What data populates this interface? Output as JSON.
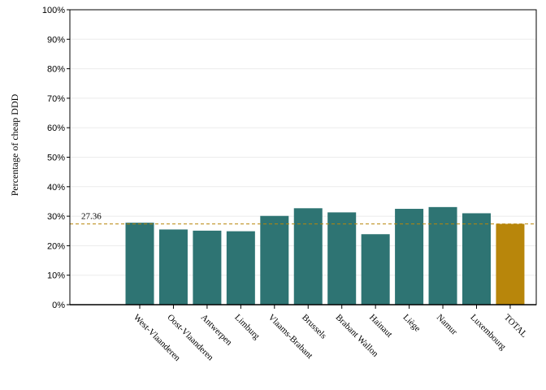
{
  "chart_data": {
    "type": "bar",
    "ylabel": "Percentage of cheap DDD",
    "xlabel": "",
    "ylim": [
      0,
      100
    ],
    "yticks": [
      0,
      10,
      20,
      30,
      40,
      50,
      60,
      70,
      80,
      90,
      100
    ],
    "ytick_labels": [
      "0%",
      "10%",
      "20%",
      "30%",
      "40%",
      "50%",
      "60%",
      "70%",
      "80%",
      "90%",
      "100%"
    ],
    "categories": [
      "West-Vlaanderen",
      "Oost-Vlaanderen",
      "Antwerpen",
      "Limburg",
      "Vlaams-Brabant",
      "Brussels",
      "Brabant Wallon",
      "Hainaut",
      "Liège",
      "Namur",
      "Luxembourg",
      "TOTAL"
    ],
    "values": [
      27.8,
      25.5,
      25.1,
      24.9,
      30.1,
      32.7,
      31.3,
      23.9,
      32.5,
      33.1,
      31.0,
      27.4
    ],
    "reference_line": {
      "value": 27.36,
      "label": "27.36",
      "style": "dashed"
    },
    "colors": {
      "bar": "#2e7473",
      "total_bar": "#b8860b",
      "reference": "#b8860b",
      "grid": "#ebebeb"
    },
    "grid": true,
    "legend": "none"
  }
}
